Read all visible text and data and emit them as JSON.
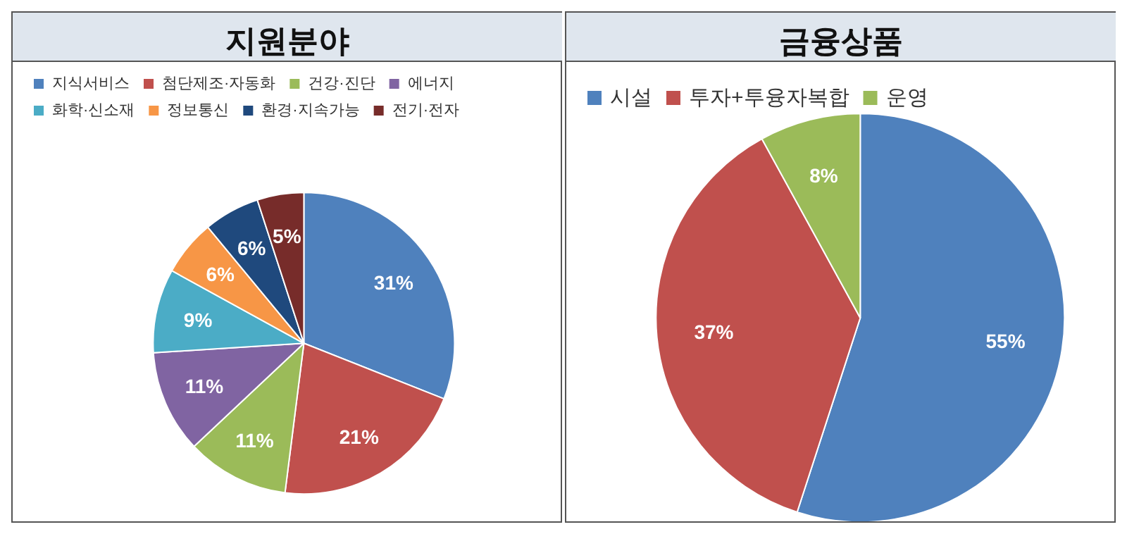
{
  "chart_data": [
    {
      "type": "pie",
      "title": "지원분야",
      "categories": [
        "지식서비스",
        "첨단제조·자동화",
        "건강·진단",
        "에너지",
        "화학·신소재",
        "정보통신",
        "환경·지속가능",
        "전기·전자"
      ],
      "values": [
        31,
        21,
        11,
        11,
        9,
        6,
        6,
        5
      ],
      "value_labels": [
        "31%",
        "21%",
        "11%",
        "11%",
        "9%",
        "6%",
        "6%",
        "5%"
      ],
      "colors": [
        "#4f81bd",
        "#c0504d",
        "#9bbb59",
        "#8064a2",
        "#4bacc6",
        "#f79646",
        "#1f497d",
        "#772c2a"
      ],
      "legend": "top"
    },
    {
      "type": "pie",
      "title": "금융상품",
      "categories": [
        "시설",
        "투자+투융자복합",
        "운영"
      ],
      "values": [
        55,
        37,
        8
      ],
      "value_labels": [
        "55%",
        "37%",
        "8%"
      ],
      "colors": [
        "#4f81bd",
        "#c0504d",
        "#9bbb59"
      ],
      "legend": "top"
    }
  ]
}
